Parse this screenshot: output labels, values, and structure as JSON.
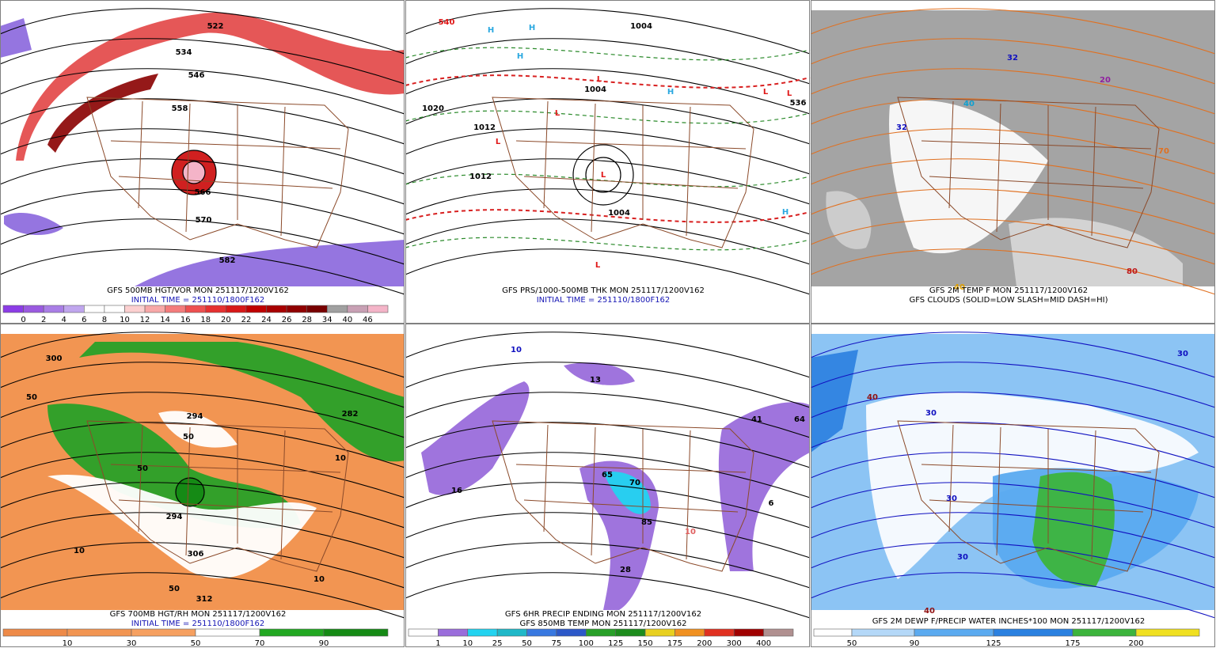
{
  "panels": [
    {
      "captions": [
        {
          "text": "GFS 500MB HGT/VOR MON 251117/1200V162",
          "color": "#000000"
        },
        {
          "text": "INITIAL TIME = 251110/1800F162",
          "color": "#1414b4"
        }
      ],
      "map_labels": [
        {
          "text": "522",
          "color": "#000000"
        },
        {
          "text": "534",
          "color": "#000000"
        },
        {
          "text": "546",
          "color": "#000000"
        },
        {
          "text": "558",
          "color": "#000000"
        },
        {
          "text": "566",
          "color": "#000000"
        },
        {
          "text": "570",
          "color": "#000000"
        },
        {
          "text": "582",
          "color": "#000000"
        }
      ],
      "colorbar": {
        "colors": [
          "#8c3ce6",
          "#9a5ae0",
          "#a97ee6",
          "#c0a6ee",
          "#ffffff",
          "#ffffff",
          "#fcd0d0",
          "#f8a8a8",
          "#f47c7c",
          "#ee5050",
          "#e63030",
          "#d81818",
          "#c00000",
          "#a80000",
          "#900000",
          "#780000",
          "#a0a0a0",
          "#c8a0b4",
          "#f4b4c8"
        ],
        "labels": [
          "0",
          "2",
          "4",
          "6",
          "8",
          "10",
          "12",
          "14",
          "16",
          "18",
          "20",
          "22",
          "24",
          "26",
          "28",
          "34",
          "40",
          "46"
        ]
      }
    },
    {
      "captions": [
        {
          "text": "GFS PRS/1000-500MB THK MON 251117/1200V162",
          "color": "#000000"
        },
        {
          "text": "INITIAL TIME = 251110/1800F162",
          "color": "#1414b4"
        }
      ],
      "map_labels": [
        {
          "text": "H",
          "color": "#2aa8e0"
        },
        {
          "text": "H",
          "color": "#2aa8e0"
        },
        {
          "text": "H",
          "color": "#2aa8e0"
        },
        {
          "text": "H",
          "color": "#2aa8e0"
        },
        {
          "text": "H",
          "color": "#2aa8e0"
        },
        {
          "text": "L",
          "color": "#e01818"
        },
        {
          "text": "L",
          "color": "#e01818"
        },
        {
          "text": "L",
          "color": "#e01818"
        },
        {
          "text": "L",
          "color": "#e01818"
        },
        {
          "text": "L",
          "color": "#e01818"
        },
        {
          "text": "L",
          "color": "#e01818"
        },
        {
          "text": "L",
          "color": "#e01818"
        },
        {
          "text": "1004",
          "color": "#000000"
        },
        {
          "text": "1004",
          "color": "#000000"
        },
        {
          "text": "1012",
          "color": "#000000"
        },
        {
          "text": "1020",
          "color": "#000000"
        },
        {
          "text": "1012",
          "color": "#000000"
        },
        {
          "text": "1004",
          "color": "#000000"
        },
        {
          "text": "540",
          "color": "#e01818"
        },
        {
          "text": "536",
          "color": "#000000"
        }
      ],
      "colorbar": null
    },
    {
      "captions": [
        {
          "text": "GFS 2M TEMP F MON 251117/1200V162",
          "color": "#000000"
        },
        {
          "text": "GFS CLOUDS (SOLID=LOW SLASH=MID DASH=HI)",
          "color": "#000000"
        }
      ],
      "map_labels": [
        {
          "text": "32",
          "color": "#1010c0"
        },
        {
          "text": "40",
          "color": "#10a0d0"
        },
        {
          "text": "70",
          "color": "#e07020"
        },
        {
          "text": "80",
          "color": "#c01818"
        },
        {
          "text": "20",
          "color": "#9020a0"
        },
        {
          "text": "40",
          "color": "#e0a000"
        },
        {
          "text": "32",
          "color": "#1010c0"
        }
      ],
      "colorbar": null
    },
    {
      "captions": [
        {
          "text": "GFS 700MB HGT/RH MON 251117/1200V162",
          "color": "#000000"
        },
        {
          "text": "INITIAL TIME = 251110/1800F162",
          "color": "#1414b4"
        }
      ],
      "map_labels": [
        {
          "text": "300",
          "color": "#000000"
        },
        {
          "text": "50",
          "color": "#000000"
        },
        {
          "text": "50",
          "color": "#000000"
        },
        {
          "text": "50",
          "color": "#000000"
        },
        {
          "text": "294",
          "color": "#000000"
        },
        {
          "text": "282",
          "color": "#000000"
        },
        {
          "text": "10",
          "color": "#000000"
        },
        {
          "text": "294",
          "color": "#000000"
        },
        {
          "text": "306",
          "color": "#000000"
        },
        {
          "text": "50",
          "color": "#000000"
        },
        {
          "text": "312",
          "color": "#000000"
        },
        {
          "text": "10",
          "color": "#000000"
        },
        {
          "text": "10",
          "color": "#000000"
        }
      ],
      "colorbar": {
        "colors": [
          "#ee8a48",
          "#f29552",
          "#f6a060",
          "#ffffff",
          "#22a822",
          "#158a15"
        ],
        "labels": [
          "10",
          "30",
          "50",
          "70",
          "90"
        ]
      }
    },
    {
      "captions": [
        {
          "text": "GFS 6HR PRECIP ENDING MON 251117/1200V162",
          "color": "#000000"
        },
        {
          "text": "GFS 850MB TEMP MON 251117/1200V162",
          "color": "#000000"
        }
      ],
      "map_labels": [
        {
          "text": "16",
          "color": "#000000"
        },
        {
          "text": "65",
          "color": "#000000"
        },
        {
          "text": "70",
          "color": "#000000"
        },
        {
          "text": "85",
          "color": "#000000"
        },
        {
          "text": "28",
          "color": "#000000"
        },
        {
          "text": "41",
          "color": "#000000"
        },
        {
          "text": "64",
          "color": "#000000"
        },
        {
          "text": "6",
          "color": "#000000"
        },
        {
          "text": "13",
          "color": "#000000"
        },
        {
          "text": "10",
          "color": "#1010c0"
        },
        {
          "text": "10",
          "color": "#e06060"
        }
      ],
      "colorbar": {
        "colors": [
          "#ffffff",
          "#9a6ddb",
          "#22d3f0",
          "#1fb8c8",
          "#3878e0",
          "#2c58c8",
          "#28a028",
          "#1c8c1c",
          "#e8d020",
          "#f09020",
          "#e03020",
          "#a00000",
          "#b09090"
        ],
        "labels": [
          "1",
          "10",
          "25",
          "50",
          "75",
          "100",
          "125",
          "150",
          "175",
          "200",
          "300",
          "400"
        ]
      }
    },
    {
      "captions": [
        {
          "text": "GFS 2M DEWP F/PRECIP WATER INCHES*100 MON 251117/1200V162",
          "color": "#000000"
        }
      ],
      "map_labels": [
        {
          "text": "30",
          "color": "#1010c0"
        },
        {
          "text": "30",
          "color": "#1010c0"
        },
        {
          "text": "40",
          "color": "#901010"
        },
        {
          "text": "30",
          "color": "#1010c0"
        },
        {
          "text": "30",
          "color": "#1010c0"
        },
        {
          "text": "40",
          "color": "#901010"
        }
      ],
      "colorbar": {
        "colors": [
          "#ffffff",
          "#b4d8f8",
          "#5aaaf0",
          "#2a80e0",
          "#3cb43c",
          "#f0e020"
        ],
        "labels": [
          "50",
          "90",
          "125",
          "175",
          "200"
        ]
      }
    }
  ]
}
